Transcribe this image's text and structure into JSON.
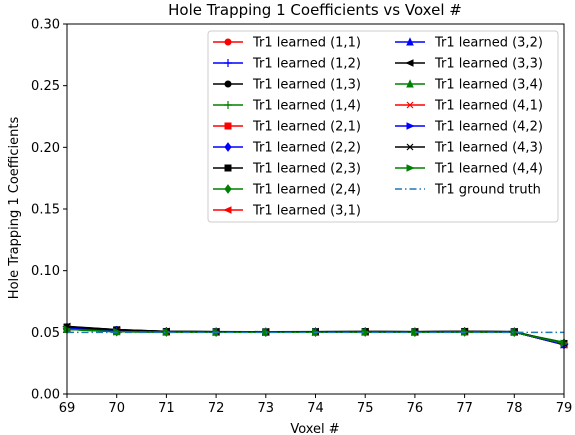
{
  "chart_data": {
    "type": "line",
    "title": "Hole Trapping 1 Coefficients vs Voxel #",
    "xlabel": "Voxel #",
    "ylabel": "Hole Trapping 1 Coefficients",
    "xlim": [
      69,
      79
    ],
    "ylim": [
      0.0,
      0.3
    ],
    "x": [
      69,
      70,
      71,
      72,
      73,
      74,
      75,
      76,
      77,
      78,
      79
    ],
    "x_ticks": [
      "69",
      "70",
      "71",
      "72",
      "73",
      "74",
      "75",
      "76",
      "77",
      "78",
      "79"
    ],
    "y_ticks": [
      "0.00",
      "0.05",
      "0.10",
      "0.15",
      "0.20",
      "0.25",
      "0.30"
    ],
    "y_tick_values": [
      0.0,
      0.05,
      0.1,
      0.15,
      0.2,
      0.25,
      0.3
    ],
    "grid": false,
    "legend_position": "top-right",
    "series": [
      {
        "name": "Tr1 learned (1,1)",
        "color": "#ff0000",
        "marker": "circle",
        "line": "solid",
        "values": [
          0.0535,
          0.0515,
          0.0505,
          0.0503,
          0.0502,
          0.0503,
          0.0504,
          0.0503,
          0.0505,
          0.0503,
          0.04
        ]
      },
      {
        "name": "Tr1 learned (1,2)",
        "color": "#0000ff",
        "marker": "plus",
        "line": "solid",
        "values": [
          0.0533,
          0.0515,
          0.0505,
          0.0503,
          0.0502,
          0.0503,
          0.0504,
          0.0503,
          0.0505,
          0.0503,
          0.04
        ]
      },
      {
        "name": "Tr1 learned (1,3)",
        "color": "#000000",
        "marker": "circle",
        "line": "solid",
        "values": [
          0.0545,
          0.0522,
          0.0508,
          0.0505,
          0.0504,
          0.0505,
          0.0506,
          0.0505,
          0.0508,
          0.0505,
          0.041
        ]
      },
      {
        "name": "Tr1 learned (1,4)",
        "color": "#008000",
        "marker": "plus",
        "line": "solid",
        "values": [
          0.0525,
          0.0505,
          0.0502,
          0.0501,
          0.0501,
          0.0501,
          0.0502,
          0.0501,
          0.0503,
          0.0501,
          0.0405
        ]
      },
      {
        "name": "Tr1 learned (2,1)",
        "color": "#ff0000",
        "marker": "square",
        "line": "solid",
        "values": [
          0.0535,
          0.0514,
          0.0505,
          0.0503,
          0.0502,
          0.0503,
          0.0504,
          0.0503,
          0.0505,
          0.0503,
          0.04
        ]
      },
      {
        "name": "Tr1 learned (2,2)",
        "color": "#0000ff",
        "marker": "diamond",
        "line": "solid",
        "values": [
          0.0533,
          0.0514,
          0.0505,
          0.0503,
          0.0502,
          0.0503,
          0.0504,
          0.0503,
          0.0505,
          0.0503,
          0.04
        ]
      },
      {
        "name": "Tr1 learned (2,3)",
        "color": "#000000",
        "marker": "square",
        "line": "solid",
        "values": [
          0.0542,
          0.052,
          0.0507,
          0.0505,
          0.0504,
          0.0505,
          0.0506,
          0.0505,
          0.0507,
          0.0505,
          0.041
        ]
      },
      {
        "name": "Tr1 learned (2,4)",
        "color": "#008000",
        "marker": "diamond",
        "line": "solid",
        "values": [
          0.0525,
          0.0505,
          0.0502,
          0.0501,
          0.0501,
          0.0501,
          0.0502,
          0.0501,
          0.0503,
          0.0501,
          0.0408
        ]
      },
      {
        "name": "Tr1 learned (3,1)",
        "color": "#ff0000",
        "marker": "triangle-left",
        "line": "solid",
        "values": [
          0.0535,
          0.0514,
          0.0505,
          0.0503,
          0.0502,
          0.0503,
          0.0504,
          0.0503,
          0.0505,
          0.0503,
          0.04
        ]
      },
      {
        "name": "Tr1 learned (3,2)",
        "color": "#0000ff",
        "marker": "triangle-up",
        "line": "solid",
        "values": [
          0.0533,
          0.0514,
          0.0505,
          0.0503,
          0.0502,
          0.0503,
          0.0504,
          0.0503,
          0.0505,
          0.0503,
          0.04
        ]
      },
      {
        "name": "Tr1 learned (3,3)",
        "color": "#000000",
        "marker": "triangle-left",
        "line": "solid",
        "values": [
          0.0548,
          0.0522,
          0.0508,
          0.0506,
          0.0505,
          0.0506,
          0.0507,
          0.0506,
          0.0508,
          0.0505,
          0.0405
        ]
      },
      {
        "name": "Tr1 learned (3,4)",
        "color": "#008000",
        "marker": "triangle-up",
        "line": "solid",
        "values": [
          0.0525,
          0.0505,
          0.0502,
          0.0501,
          0.0501,
          0.0501,
          0.0502,
          0.0501,
          0.0503,
          0.0501,
          0.042
        ]
      },
      {
        "name": "Tr1 learned (4,1)",
        "color": "#ff0000",
        "marker": "x",
        "line": "solid",
        "values": [
          0.0535,
          0.0514,
          0.0505,
          0.0503,
          0.0502,
          0.0503,
          0.0504,
          0.0503,
          0.0505,
          0.0503,
          0.04
        ]
      },
      {
        "name": "Tr1 learned (4,2)",
        "color": "#0000ff",
        "marker": "triangle-right",
        "line": "solid",
        "values": [
          0.0533,
          0.0514,
          0.0505,
          0.0503,
          0.0502,
          0.0503,
          0.0504,
          0.0503,
          0.0505,
          0.0503,
          0.04
        ]
      },
      {
        "name": "Tr1 learned (4,3)",
        "color": "#000000",
        "marker": "x",
        "line": "solid",
        "values": [
          0.0545,
          0.052,
          0.0507,
          0.0505,
          0.0504,
          0.0505,
          0.0506,
          0.0505,
          0.0507,
          0.0505,
          0.041
        ]
      },
      {
        "name": "Tr1 learned (4,4)",
        "color": "#008000",
        "marker": "triangle-right",
        "line": "solid",
        "values": [
          0.0525,
          0.0505,
          0.0502,
          0.0501,
          0.0501,
          0.0501,
          0.0502,
          0.0501,
          0.0503,
          0.0501,
          0.041
        ]
      },
      {
        "name": "Tr1 ground truth",
        "color": "#1f77b4",
        "marker": "none",
        "line": "dashdot",
        "values": [
          0.05,
          0.05,
          0.05,
          0.05,
          0.05,
          0.05,
          0.05,
          0.05,
          0.05,
          0.05,
          0.05
        ]
      }
    ]
  }
}
